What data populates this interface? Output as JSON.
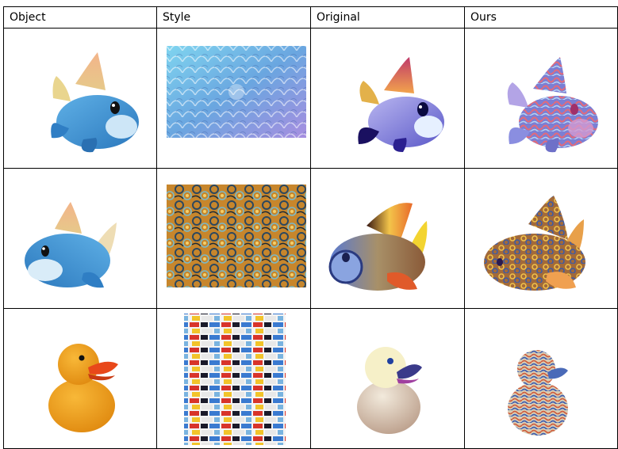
{
  "table": {
    "headers": [
      "Object",
      "Style",
      "Original",
      "Ours"
    ]
  },
  "palette": {
    "fish_blue": "#3e93d0",
    "fin_orange": "#f0a060",
    "duck_orange": "#f0a020",
    "beak_red": "#e8481a",
    "grid_border": "#000000"
  },
  "rows": [
    {
      "object": "fish-icon",
      "style": "scales-texture",
      "original": "stylized-fish-icon",
      "ours": "stylized-fish-icon"
    },
    {
      "object": "fish-icon",
      "style": "swirl-texture",
      "original": "stylized-fish-icon",
      "ours": "stylized-fish-icon"
    },
    {
      "object": "duck-icon",
      "style": "bricks-texture",
      "original": "stylized-duck-icon",
      "ours": "stylized-duck-icon"
    }
  ]
}
